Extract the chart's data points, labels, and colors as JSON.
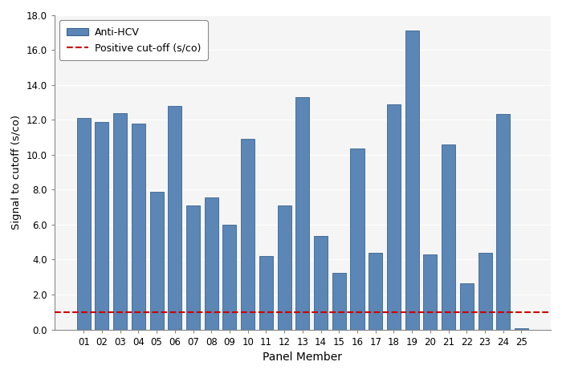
{
  "categories": [
    "01",
    "02",
    "03",
    "04",
    "05",
    "06",
    "07",
    "08",
    "09",
    "10",
    "11",
    "12",
    "13",
    "14",
    "15",
    "16",
    "17",
    "18",
    "19",
    "20",
    "21",
    "22",
    "23",
    "24",
    "25"
  ],
  "values": [
    12.1,
    11.9,
    12.4,
    11.8,
    7.9,
    12.8,
    7.1,
    7.55,
    6.0,
    10.9,
    4.2,
    7.1,
    13.3,
    5.35,
    3.25,
    10.35,
    4.4,
    12.9,
    17.1,
    4.3,
    10.6,
    2.65,
    4.4,
    12.35,
    0.07
  ],
  "bar_color": "#5b86b5",
  "bar_edgecolor": "#3a6490",
  "cutoff_value": 1.0,
  "cutoff_color": "#cc0000",
  "xlabel": "Panel Member",
  "ylabel": "Signal to cutoff (s/co)",
  "ylim": [
    0,
    18.0
  ],
  "yticks": [
    0.0,
    2.0,
    4.0,
    6.0,
    8.0,
    10.0,
    12.0,
    14.0,
    16.0,
    18.0
  ],
  "legend_bar_label": "Anti-HCV",
  "legend_line_label": "Positive cut-off (s/co)",
  "figsize": [
    7.0,
    4.66
  ],
  "dpi": 100,
  "bg_color": "#f5f5f5",
  "fig_bg_color": "#ffffff"
}
